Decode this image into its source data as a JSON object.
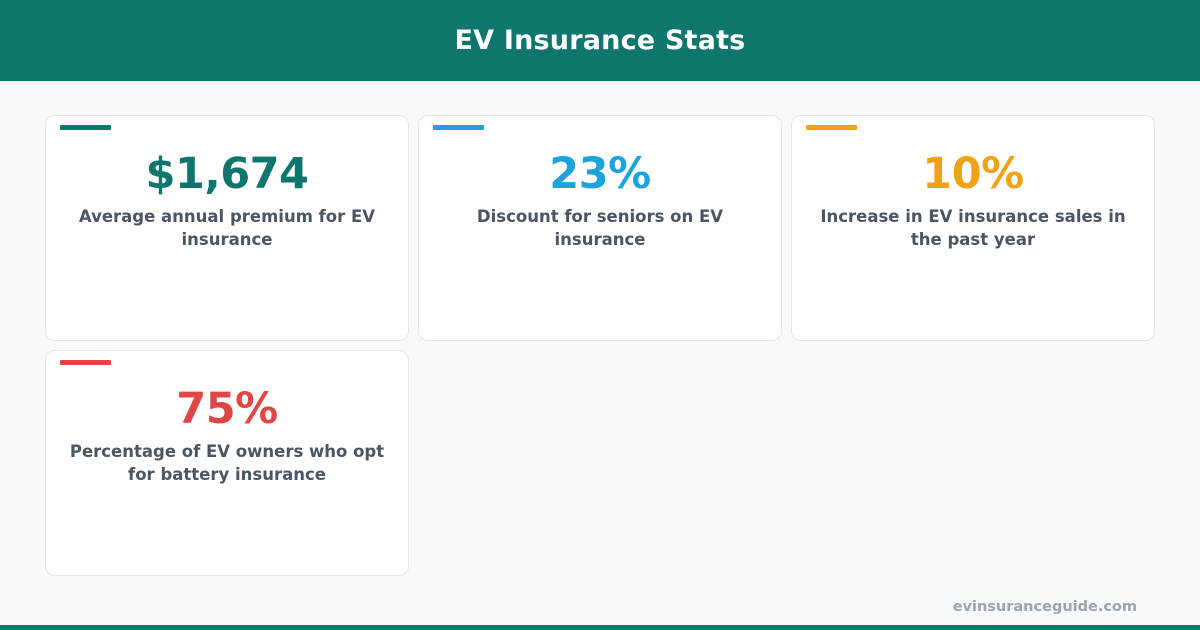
{
  "header": {
    "title": "EV Insurance Stats"
  },
  "stats": [
    {
      "value": "$1,674",
      "label": "Average annual premium for EV insurance",
      "color": "#0f766e"
    },
    {
      "value": "23%",
      "label": "Discount for seniors on EV insurance",
      "color": "#1aa3dc"
    },
    {
      "value": "10%",
      "label": "Increase in EV insurance sales in the past year",
      "color": "#efa216"
    },
    {
      "value": "75%",
      "label": "Percentage of EV owners who opt for battery insurance",
      "color": "#e04646"
    }
  ],
  "footer": {
    "site": "evinsuranceguide.com",
    "bar_color": "#0f766e"
  }
}
